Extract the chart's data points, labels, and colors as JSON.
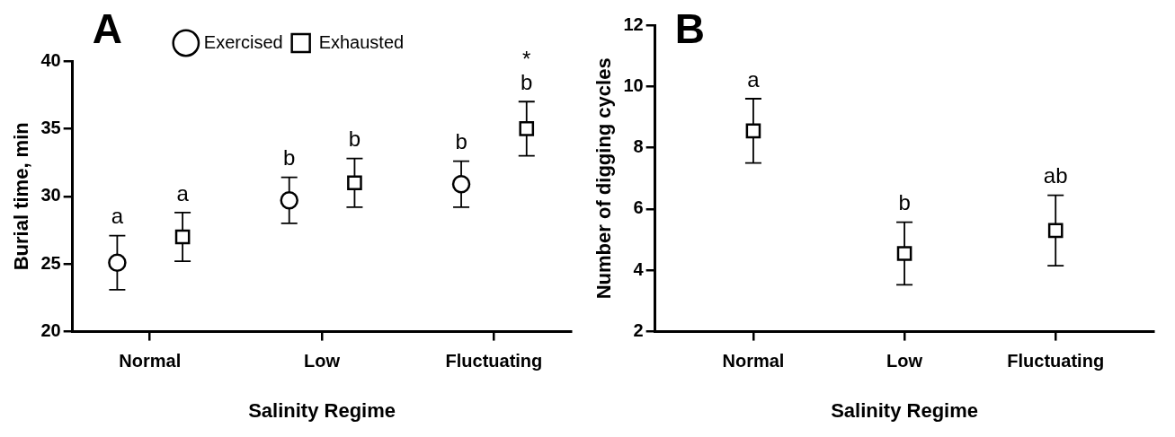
{
  "chart_data": [
    {
      "type": "scatter",
      "title": "A",
      "xlabel": "Salinity Regime",
      "ylabel": "Burial time, min",
      "categories": [
        "Normal",
        "Low",
        "Fluctuating"
      ],
      "ylim": [
        20,
        40
      ],
      "yticks": [
        20,
        25,
        30,
        35,
        40
      ],
      "grid": false,
      "legend": "top",
      "series": [
        {
          "name": "Exercised",
          "color": "#000000",
          "marker": "circle",
          "values": [
            25.1,
            29.7,
            30.9
          ],
          "errors": [
            2.0,
            1.7,
            1.7
          ],
          "value_labels": [
            "a",
            "b",
            "b"
          ]
        },
        {
          "name": "Exhausted",
          "color": "#000000",
          "marker": "square",
          "values": [
            27.0,
            31.0,
            35.0
          ],
          "errors": [
            1.8,
            1.8,
            2.0
          ],
          "value_labels": [
            "a",
            "b",
            "b"
          ]
        }
      ],
      "annotations": [
        "*"
      ]
    },
    {
      "type": "scatter",
      "title": "B",
      "xlabel": "Salinity Regime",
      "ylabel": "Number of digging cycles",
      "categories": [
        "Normal",
        "Low",
        "Fluctuating"
      ],
      "ylim": [
        2,
        12
      ],
      "yticks": [
        2,
        4,
        6,
        8,
        10,
        12
      ],
      "grid": false,
      "legend": false,
      "series": [
        {
          "color": "#000000",
          "marker": "square",
          "values": [
            8.55,
            4.55,
            5.3
          ],
          "errors": [
            1.05,
            1.02,
            1.15
          ],
          "value_labels": [
            "a",
            "b",
            "ab"
          ]
        }
      ]
    }
  ]
}
